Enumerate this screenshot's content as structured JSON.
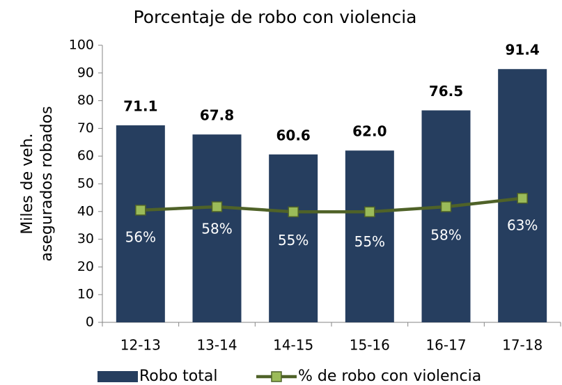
{
  "chart_data": {
    "type": "bar",
    "title": "Porcentaje de robo con violencia",
    "ylabel": [
      "Miles de veh.",
      "asegurados robados"
    ],
    "categories": [
      "12-13",
      "13-14",
      "14-15",
      "15-16",
      "16-17",
      "17-18"
    ],
    "ylim": [
      0,
      100
    ],
    "yticks": [
      0,
      10,
      20,
      30,
      40,
      50,
      60,
      70,
      80,
      90,
      100
    ],
    "y2lim": [
      -10,
      153
    ],
    "series": [
      {
        "name": "Robo total",
        "type": "bar",
        "color": "#263e5f",
        "values": [
          71.1,
          67.8,
          60.6,
          62.0,
          76.5,
          91.4
        ],
        "value_labels": [
          "71.1",
          "67.8",
          "60.6",
          "62.0",
          "76.5",
          "91.4"
        ]
      },
      {
        "name": "% de robo con violencia",
        "type": "line",
        "axis": "y2",
        "color": "#4f6228",
        "marker_color": "#9bbb59",
        "values": [
          56,
          58,
          55,
          55,
          58,
          63
        ],
        "value_labels": [
          "56%",
          "58%",
          "55%",
          "55%",
          "58%",
          "63%"
        ]
      }
    ],
    "legend": "bottom"
  }
}
